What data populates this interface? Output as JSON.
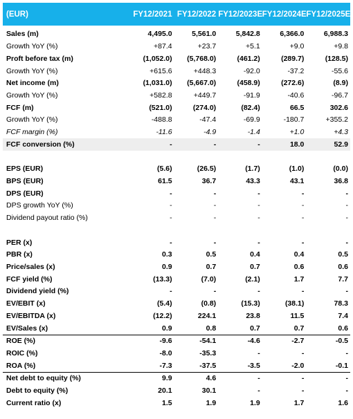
{
  "header": {
    "currency": "(EUR)",
    "columns": [
      "FY12/2021",
      "FY12/2022",
      "FY12/2023E",
      "FY12/2024E",
      "FY12/2025E"
    ]
  },
  "rows": [
    {
      "label": "Sales (m)",
      "values": [
        "4,495.0",
        "5,561.0",
        "5,842.8",
        "6,366.0",
        "6,988.3"
      ],
      "style": "bold"
    },
    {
      "label": "Growth YoY (%)",
      "values": [
        "+87.4",
        "+23.7",
        "+5.1",
        "+9.0",
        "+9.8"
      ],
      "style": ""
    },
    {
      "label": "Proft before tax (m)",
      "values": [
        "(1,052.0)",
        "(5,768.0)",
        "(461.2)",
        "(289.7)",
        "(128.5)"
      ],
      "style": "bold"
    },
    {
      "label": "Growth YoY (%)",
      "values": [
        "+615.6",
        "+448.3",
        "-92.0",
        "-37.2",
        "-55.6"
      ],
      "style": ""
    },
    {
      "label": "Net income (m)",
      "values": [
        "(1,031.0)",
        "(5,667.0)",
        "(458.9)",
        "(272.6)",
        "(8.9)"
      ],
      "style": "bold"
    },
    {
      "label": "Growth YoY (%)",
      "values": [
        "+582.8",
        "+449.7",
        "-91.9",
        "-40.6",
        "-96.7"
      ],
      "style": ""
    },
    {
      "label": "FCF (m)",
      "values": [
        "(521.0)",
        "(274.0)",
        "(82.4)",
        "66.5",
        "302.6"
      ],
      "style": "bold"
    },
    {
      "label": "Growth YoY (%)",
      "values": [
        "-488.8",
        "-47.4",
        "-69.9",
        "-180.7",
        "+355.2"
      ],
      "style": ""
    },
    {
      "label": "FCF margin (%)",
      "values": [
        "-11.6",
        "-4.9",
        "-1.4",
        "+1.0",
        "+4.3"
      ],
      "style": "ital"
    },
    {
      "label": "FCF conversion (%)",
      "values": [
        "-",
        "-",
        "-",
        "18.0",
        "52.9"
      ],
      "style": "bold shade"
    },
    {
      "gap": true
    },
    {
      "label": "EPS (EUR)",
      "values": [
        "(5.6)",
        "(26.5)",
        "(1.7)",
        "(1.0)",
        "(0.0)"
      ],
      "style": "bold"
    },
    {
      "label": "BPS (EUR)",
      "values": [
        "61.5",
        "36.7",
        "43.3",
        "43.1",
        "36.8"
      ],
      "style": "bold"
    },
    {
      "label": "DPS (EUR)",
      "values": [
        "-",
        "-",
        "-",
        "-",
        "-"
      ],
      "style": "bold"
    },
    {
      "label": "DPS growth YoY (%)",
      "values": [
        "-",
        "-",
        "-",
        "-",
        "-"
      ],
      "style": ""
    },
    {
      "label": "Dividend payout ratio (%)",
      "values": [
        "-",
        "-",
        "-",
        "-",
        "-"
      ],
      "style": ""
    },
    {
      "gap": true
    },
    {
      "label": "PER (x)",
      "values": [
        "-",
        "-",
        "-",
        "-",
        "-"
      ],
      "style": "bold"
    },
    {
      "label": "PBR (x)",
      "values": [
        "0.3",
        "0.5",
        "0.4",
        "0.4",
        "0.5"
      ],
      "style": "bold"
    },
    {
      "label": "Price/sales (x)",
      "values": [
        "0.9",
        "0.7",
        "0.7",
        "0.6",
        "0.6"
      ],
      "style": "bold"
    },
    {
      "label": "FCF yield (%)",
      "values": [
        "(13.3)",
        "(7.0)",
        "(2.1)",
        "1.7",
        "7.7"
      ],
      "style": "bold"
    },
    {
      "label": "Dividend yield (%)",
      "values": [
        "-",
        "-",
        "-",
        "-",
        "-"
      ],
      "style": "bold"
    },
    {
      "label": "EV/EBIT (x)",
      "values": [
        "(5.4)",
        "(0.8)",
        "(15.3)",
        "(38.1)",
        "78.3"
      ],
      "style": "bold"
    },
    {
      "label": "EV/EBITDA (x)",
      "values": [
        "(12.2)",
        "224.1",
        "23.8",
        "11.5",
        "7.4"
      ],
      "style": "bold"
    },
    {
      "label": "EV/Sales (x)",
      "values": [
        "0.9",
        "0.8",
        "0.7",
        "0.7",
        "0.6"
      ],
      "style": "bold bb"
    },
    {
      "label": "ROE (%)",
      "values": [
        "-9.6",
        "-54.1",
        "-4.6",
        "-2.7",
        "-0.5"
      ],
      "style": "bold"
    },
    {
      "label": "ROIC (%)",
      "values": [
        "-8.0",
        "-35.3",
        "-",
        "-",
        "-"
      ],
      "style": "bold"
    },
    {
      "label": "ROA (%)",
      "values": [
        "-7.3",
        "-37.5",
        "-3.5",
        "-2.0",
        "-0.1"
      ],
      "style": "bold bb"
    },
    {
      "label": "Net debt to equity (%)",
      "values": [
        "9.9",
        "4.6",
        "-",
        "-",
        "-"
      ],
      "style": "bold"
    },
    {
      "label": "Debt to equity (%)",
      "values": [
        "20.1",
        "30.1",
        "-",
        "-",
        "-"
      ],
      "style": "bold"
    },
    {
      "label": "Current ratio (x)",
      "values": [
        "1.5",
        "1.9",
        "1.9",
        "1.7",
        "1.6"
      ],
      "style": "bold"
    }
  ]
}
